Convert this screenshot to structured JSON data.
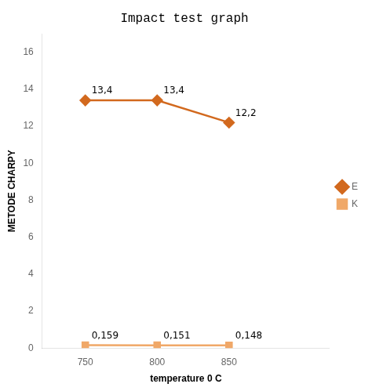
{
  "chart_data": {
    "type": "line",
    "title": "Impact test graph",
    "xlabel": "temperature 0 C",
    "ylabel": "METODE CHARPY",
    "x": [
      750,
      800,
      850
    ],
    "series": [
      {
        "name": "E",
        "color": "#D2691E",
        "marker": "diamond",
        "values": [
          13.4,
          13.4,
          12.2
        ],
        "value_labels": [
          "13,4",
          "13,4",
          "12,2"
        ]
      },
      {
        "name": "K",
        "color": "#F0A868",
        "marker": "square",
        "values": [
          0.159,
          0.151,
          0.148
        ],
        "value_labels": [
          "0,159",
          "0,151",
          "0,148"
        ]
      }
    ],
    "xlim": [
      720,
      920
    ],
    "xticks": [
      750,
      800,
      850
    ],
    "ylim": [
      0,
      17
    ],
    "yticks": [
      0,
      2,
      4,
      6,
      8,
      10,
      12,
      14,
      16
    ],
    "grid": false,
    "legend": "right",
    "data_labels": true
  }
}
